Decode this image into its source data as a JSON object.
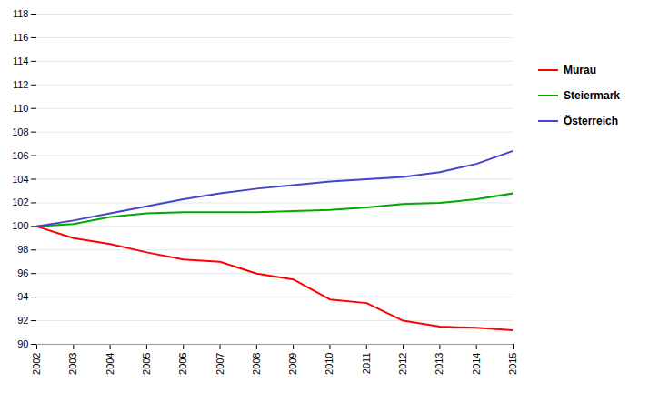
{
  "chart_data": {
    "type": "line",
    "x": [
      2002,
      2003,
      2004,
      2005,
      2006,
      2007,
      2008,
      2009,
      2010,
      2011,
      2012,
      2013,
      2014,
      2015
    ],
    "series": [
      {
        "name": "Murau",
        "color": "#ff0000",
        "values": [
          100.0,
          99.0,
          98.5,
          97.8,
          97.2,
          97.0,
          96.0,
          95.5,
          93.8,
          93.5,
          92.0,
          91.5,
          91.4,
          91.2
        ]
      },
      {
        "name": "Steiermark",
        "color": "#00aa00",
        "values": [
          100.0,
          100.2,
          100.8,
          101.1,
          101.2,
          101.2,
          101.2,
          101.3,
          101.4,
          101.6,
          101.9,
          102.0,
          102.3,
          102.8
        ]
      },
      {
        "name": "Österreich",
        "color": "#4444cc",
        "values": [
          100.0,
          100.5,
          101.1,
          101.7,
          102.3,
          102.8,
          103.2,
          103.5,
          103.8,
          104.0,
          104.2,
          104.6,
          105.3,
          106.4
        ]
      }
    ],
    "xlim": [
      2002,
      2015
    ],
    "xticks": [
      2002,
      2003,
      2004,
      2005,
      2006,
      2007,
      2008,
      2009,
      2010,
      2011,
      2012,
      2013,
      2014,
      2015
    ],
    "ylim": [
      90,
      118
    ],
    "yticks": [
      90,
      92,
      94,
      96,
      98,
      100,
      102,
      104,
      106,
      108,
      110,
      112,
      114,
      116,
      118
    ],
    "grid": "y",
    "legend": "right"
  }
}
